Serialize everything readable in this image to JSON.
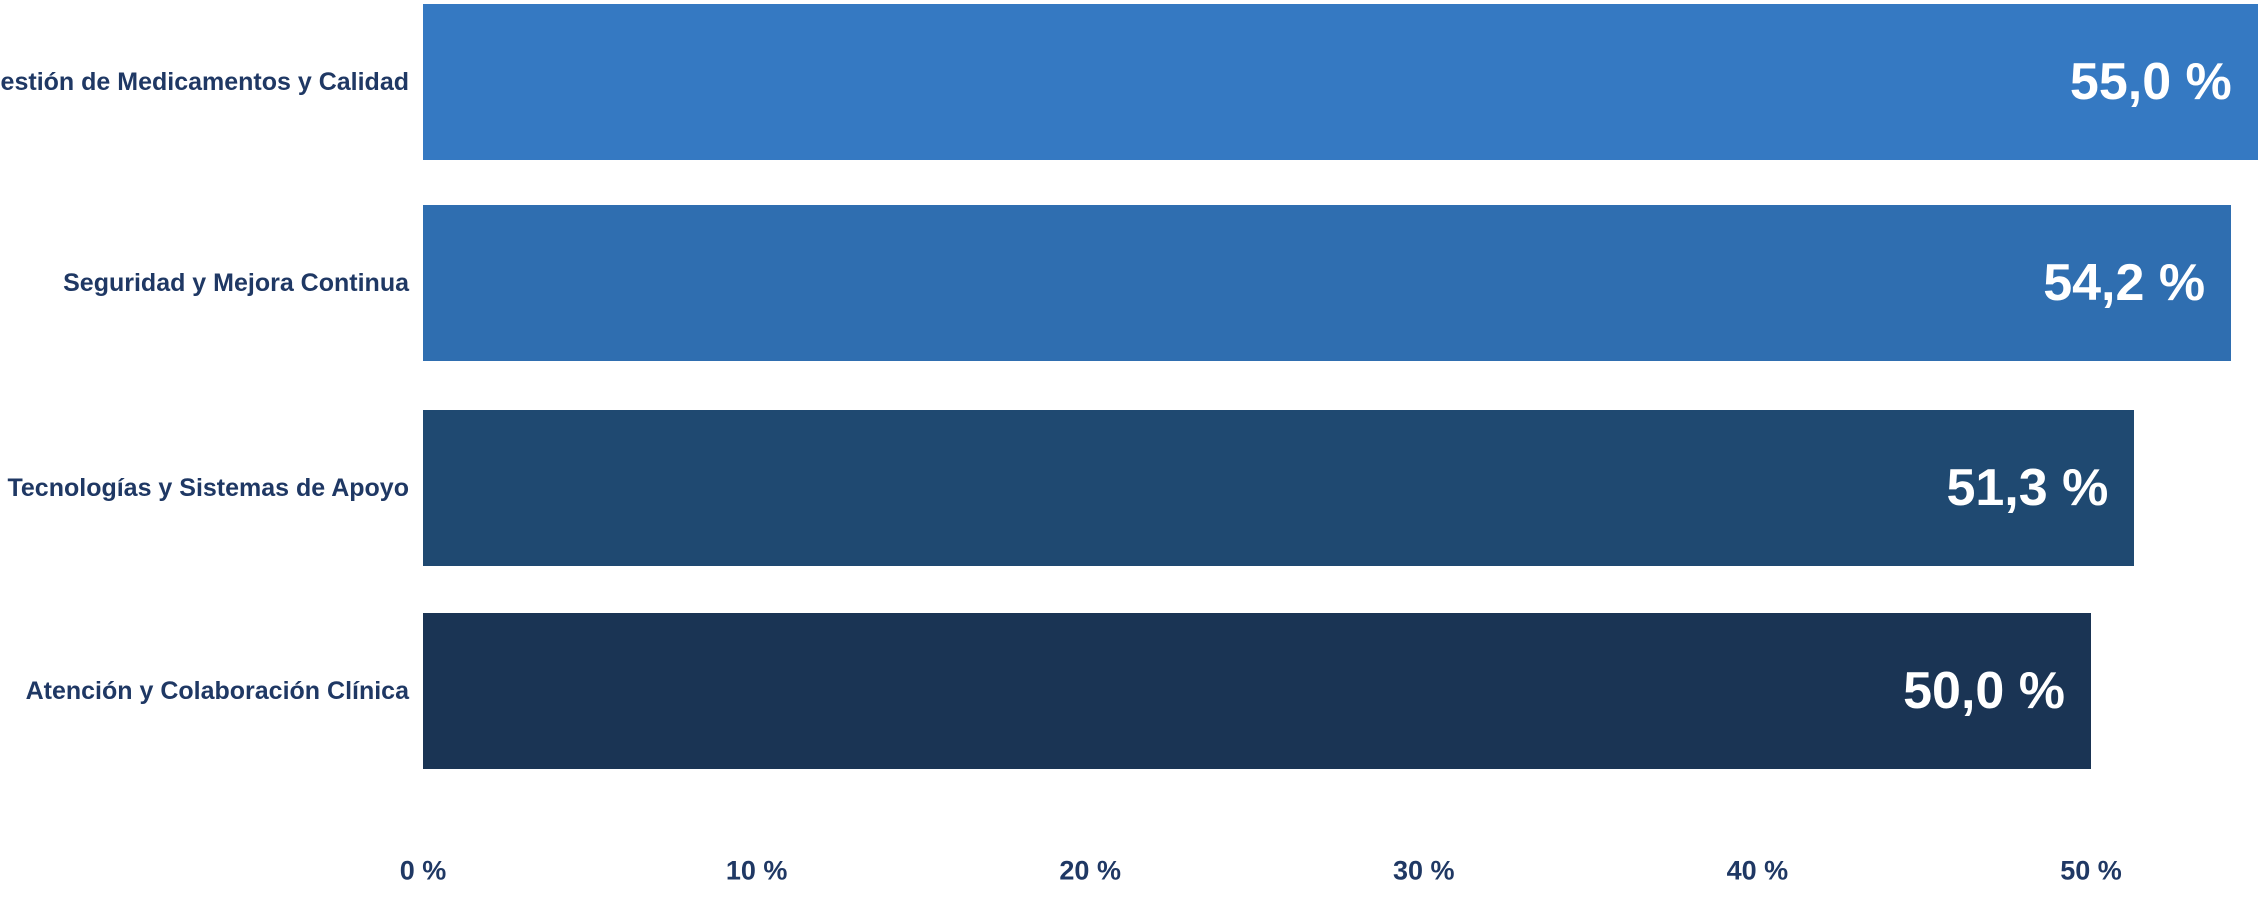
{
  "chart_data": {
    "type": "bar",
    "orientation": "horizontal",
    "title": "",
    "xlabel": "",
    "ylabel": "",
    "categories": [
      "Gestión de Medicamentos y Calidad",
      "Seguridad y Mejora Continua",
      "Tecnologías y Sistemas de Apoyo",
      "Atención y Colaboración Clínica"
    ],
    "values": [
      55.0,
      54.2,
      51.3,
      50.0
    ],
    "value_labels": [
      "55,0 %",
      "54,2 %",
      "51,3 %",
      "50,0 %"
    ],
    "bar_colors": [
      "#3579C2",
      "#2F6EB0",
      "#1F4971",
      "#1A3454"
    ],
    "x_ticks": [
      {
        "label": "0 %",
        "value": 0
      },
      {
        "label": "10 %",
        "value": 10
      },
      {
        "label": "20 %",
        "value": 20
      },
      {
        "label": "30 %",
        "value": 30
      },
      {
        "label": "40 %",
        "value": 40
      },
      {
        "label": "50 %",
        "value": 50
      }
    ],
    "xlim": [
      0,
      55.3
    ],
    "grid": false,
    "legend": "none",
    "label_color": "#1F3864",
    "value_label_color": "#FFFFFF",
    "background_color": "#FFFFFF"
  }
}
